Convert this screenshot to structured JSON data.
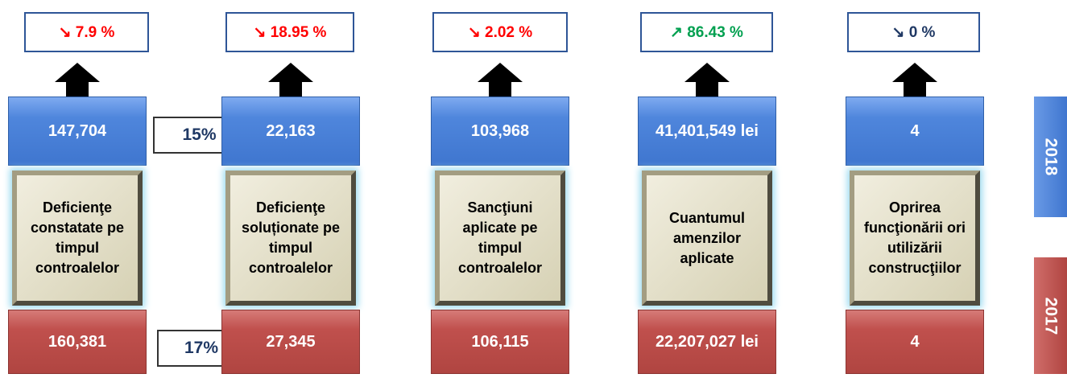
{
  "columns": [
    {
      "change": "↘ 7.9 %",
      "trend": "down",
      "value_2018": "147,704",
      "label": "Deficienţe constatate pe timpul controalelor",
      "value_2017": "160,381"
    },
    {
      "change": "↘ 18.95 %",
      "trend": "down",
      "value_2018": "22,163",
      "label": "Deficienţe soluționate pe timpul controalelor",
      "value_2017": "27,345"
    },
    {
      "change": "↘ 2.02 %",
      "trend": "down",
      "value_2018": "103,968",
      "label": "Sancţiuni aplicate pe timpul controalelor",
      "value_2017": "106,115"
    },
    {
      "change": "↗ 86.43 %",
      "trend": "up",
      "value_2018": "41,401,549  lei",
      "label": "Cuantumul amenzilor aplicate",
      "value_2017": "22,207,027  lei"
    },
    {
      "change": "↘ 0 %",
      "trend": "flat",
      "value_2018": "4",
      "label": "Oprirea funcţionării ori utilizării construcţiilor",
      "value_2017": "4"
    }
  ],
  "ratio_2018": "15%",
  "ratio_2017": "17%",
  "year_2018": "2018",
  "year_2017": "2017"
}
